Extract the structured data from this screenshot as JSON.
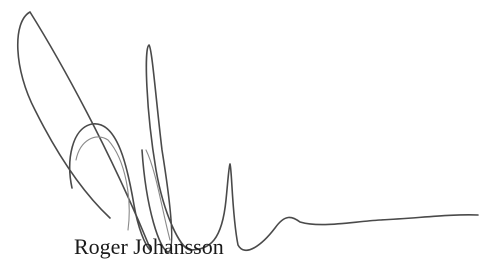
{
  "signature": {
    "name": "Roger Johansson"
  }
}
